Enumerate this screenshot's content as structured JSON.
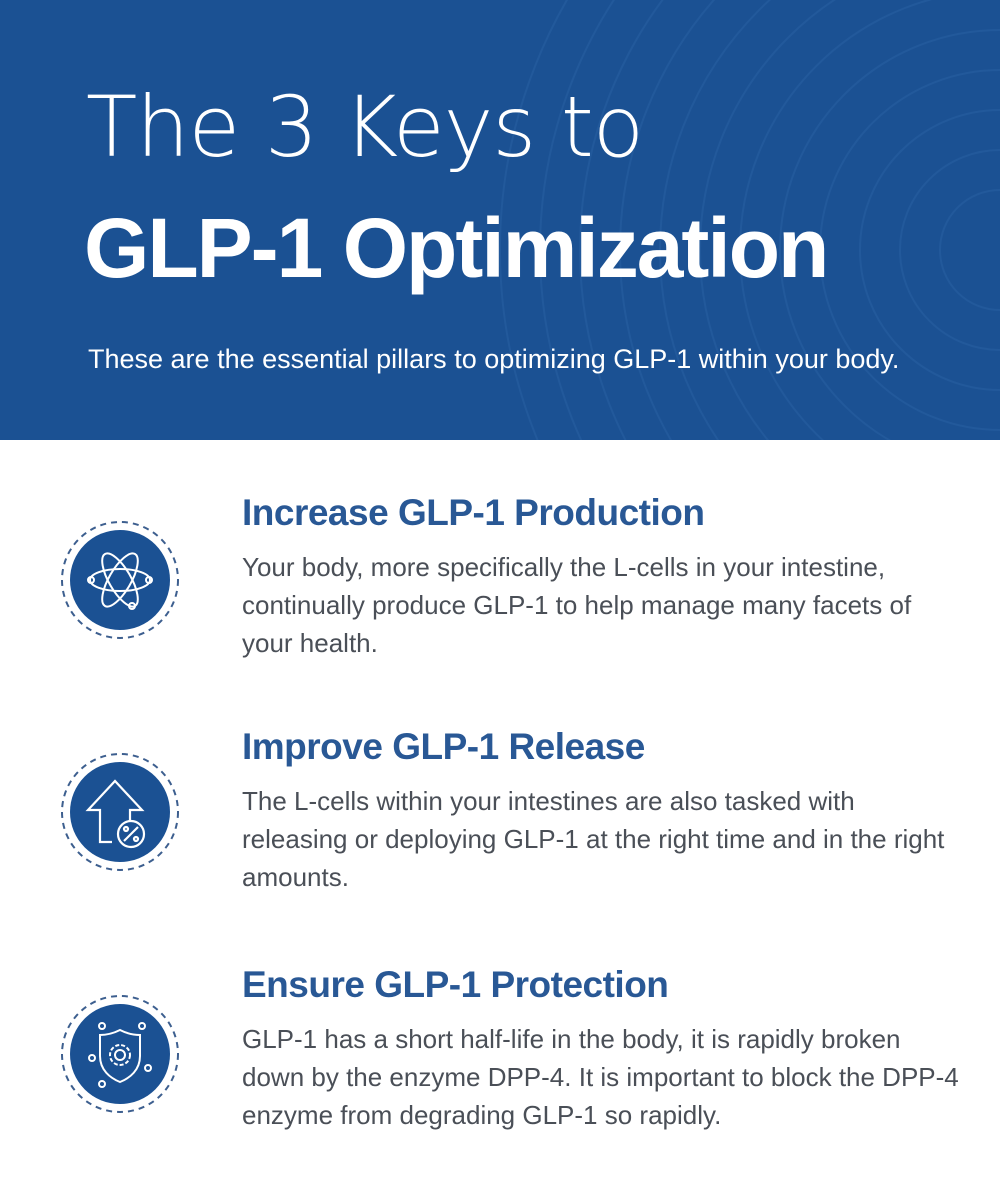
{
  "header": {
    "title_line1": "The 3 Keys to",
    "title_line2": "GLP-1 Optimization",
    "subtitle": "These are the essential pillars to optimizing GLP-1 within your body."
  },
  "colors": {
    "brand_blue": "#1b5193",
    "heading_blue": "#295895",
    "body_text": "#4a4f57"
  },
  "items": [
    {
      "icon": "atom-icon",
      "heading": "Increase GLP-1 Production",
      "text": "Your body, more specifically the L-cells in your intestine, continually produce GLP-1 to help manage many facets of your health."
    },
    {
      "icon": "arrow-up-percent-icon",
      "heading": "Improve GLP-1 Release",
      "text": "The L-cells within your intestines are also tasked with releasing or deploying GLP-1 at the right time and in the right amounts."
    },
    {
      "icon": "shield-gear-icon",
      "heading": "Ensure GLP-1 Protection",
      "text": "GLP-1 has a short half-life in the body, it is rapidly broken down by the enzyme DPP-4. It is important to block the DPP-4 enzyme from degrading GLP-1 so rapidly."
    }
  ]
}
